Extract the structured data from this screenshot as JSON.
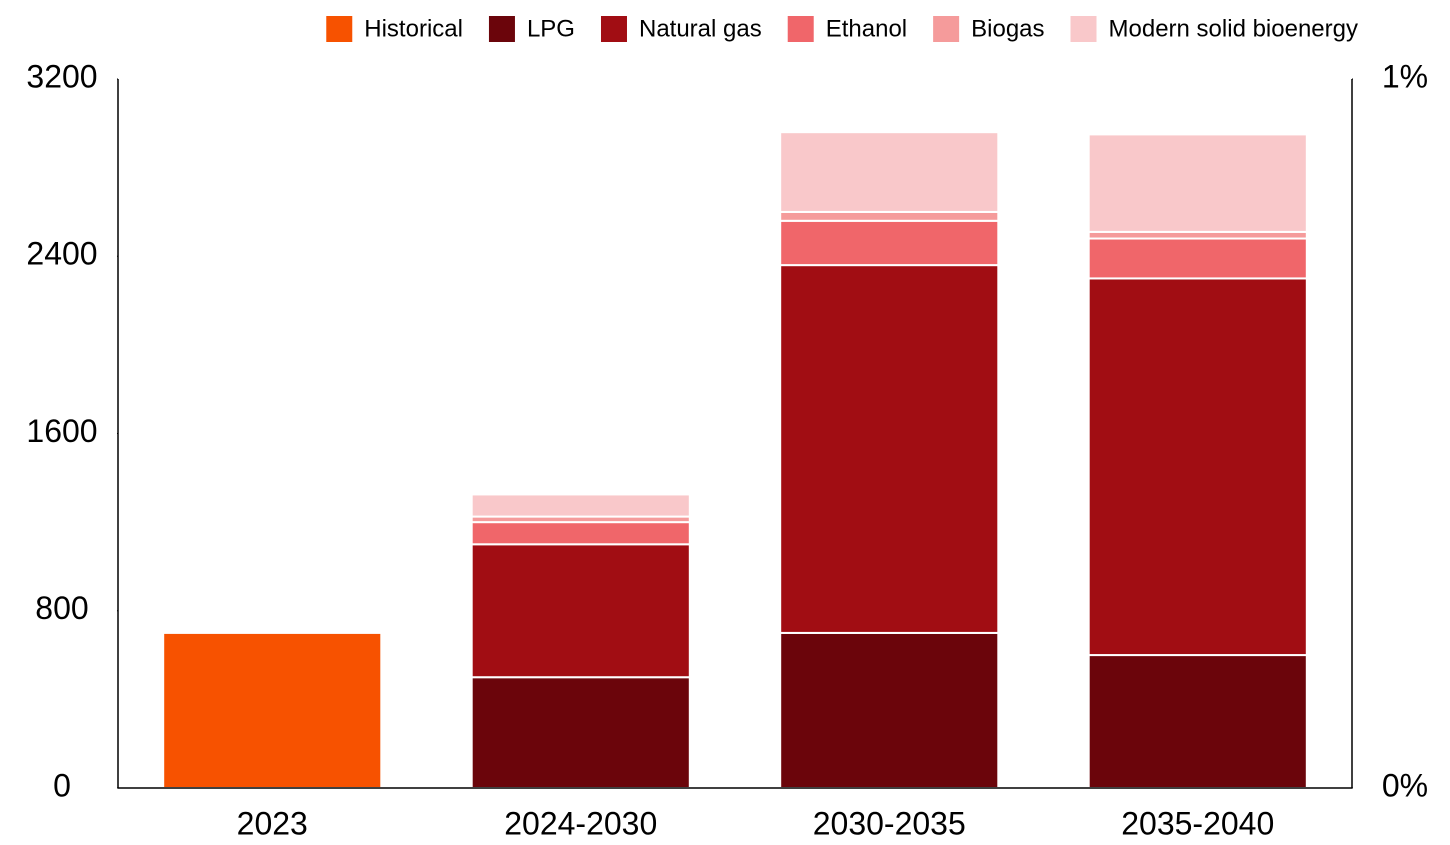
{
  "chart_data": {
    "type": "stacked_bar",
    "categories": [
      "2023",
      "2024-2030",
      "2030-2035",
      "2035-2040"
    ],
    "series": [
      {
        "name": "Historical",
        "color": "#f75200",
        "values": [
          700,
          null,
          null,
          null
        ]
      },
      {
        "name": "LPG",
        "color": "#6b050b",
        "values": [
          null,
          500,
          700,
          600
        ]
      },
      {
        "name": "Natural gas",
        "color": "#a10d13",
        "values": [
          null,
          600,
          1660,
          1700
        ]
      },
      {
        "name": "Ethanol",
        "color": "#f0666a",
        "values": [
          null,
          100,
          200,
          180
        ]
      },
      {
        "name": "Biogas",
        "color": "#f59b9b",
        "values": [
          null,
          25,
          40,
          30
        ]
      },
      {
        "name": "Modern solid bioenergy",
        "color": "#f9c8ca",
        "values": [
          null,
          100,
          360,
          440
        ]
      }
    ],
    "ylim": [
      0,
      3200
    ],
    "yticks": [
      0,
      800,
      1600,
      2400,
      3200
    ],
    "y2lim": [
      0,
      1
    ],
    "y2ticks": [
      {
        "value": 0,
        "label": "0%"
      },
      {
        "value": 1,
        "label": "1%"
      }
    ],
    "legend": "top-right"
  }
}
